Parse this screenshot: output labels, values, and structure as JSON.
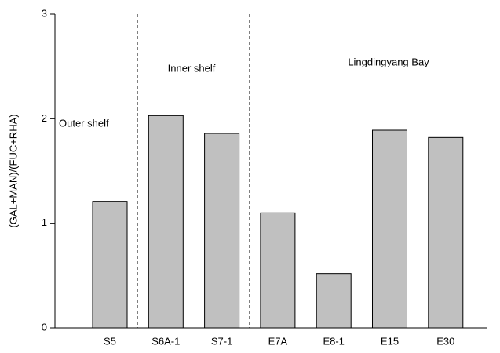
{
  "chart_data": {
    "type": "bar",
    "y_label": "(GAL+MAN)/(FUC+RHA)",
    "categories": [
      "S5",
      "S6A-1",
      "S7-1",
      "E7A",
      "E8-1",
      "E15",
      "E30"
    ],
    "values": [
      1.21,
      2.03,
      1.86,
      1.1,
      0.52,
      1.89,
      1.82
    ],
    "color": "#c0c0c0",
    "ylim": [
      0,
      3
    ],
    "yticks": [
      0,
      1,
      2,
      3
    ],
    "grid": false,
    "annotations": [
      "Outer shelf",
      "Inner shelf",
      "Lingdingyang Bay"
    ]
  }
}
